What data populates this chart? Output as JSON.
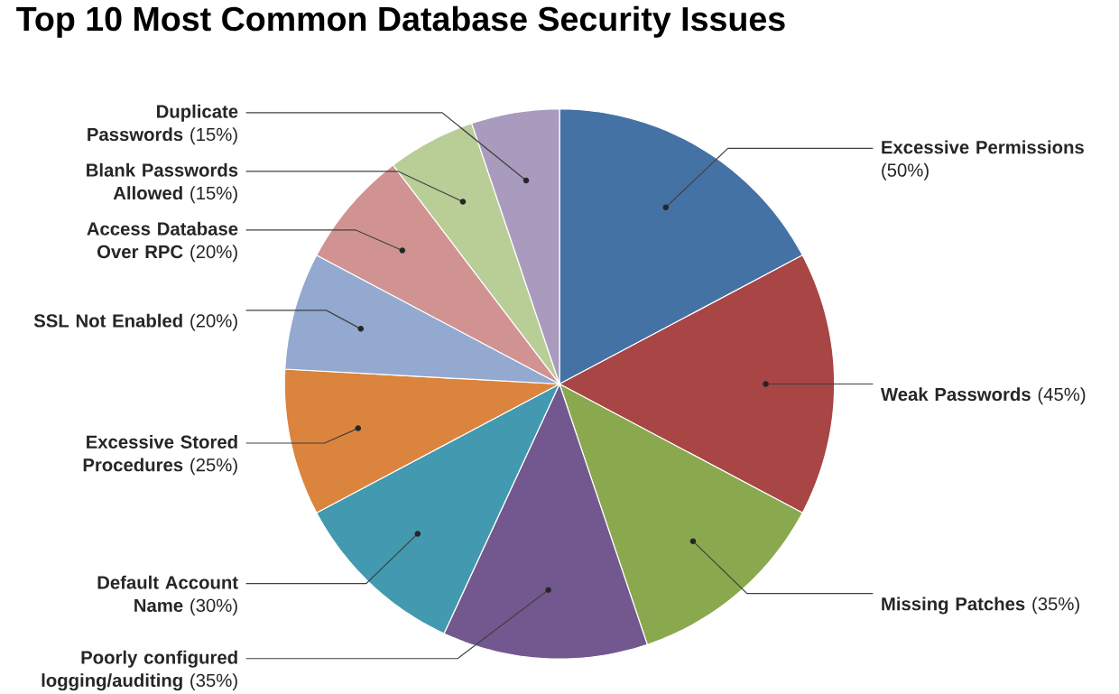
{
  "chart_data": {
    "type": "pie",
    "title": "Top 10 Most Common Database Security Issues",
    "categories": [
      "Excessive Permissions",
      "Weak Passwords",
      "Missing Patches",
      "Poorly configured logging/auditing",
      "Default Account Name",
      "Excessive Stored Procedures",
      "SSL Not Enabled",
      "Access Database Over RPC",
      "Blank Passwords Allowed",
      "Duplicate Passwords"
    ],
    "values": [
      50,
      45,
      35,
      35,
      30,
      25,
      20,
      20,
      15,
      15
    ],
    "value_labels": [
      "(50%)",
      "(45%)",
      "(35%)",
      "(35%)",
      "(30%)",
      "(25%)",
      "(20%)",
      "(20%)",
      "(15%)",
      "(15%)"
    ],
    "colors": [
      "#4572a4",
      "#a84545",
      "#8aa84e",
      "#72588e",
      "#4299b0",
      "#db843d",
      "#93a9cf",
      "#d19392",
      "#b9cd96",
      "#a99bbd"
    ]
  }
}
